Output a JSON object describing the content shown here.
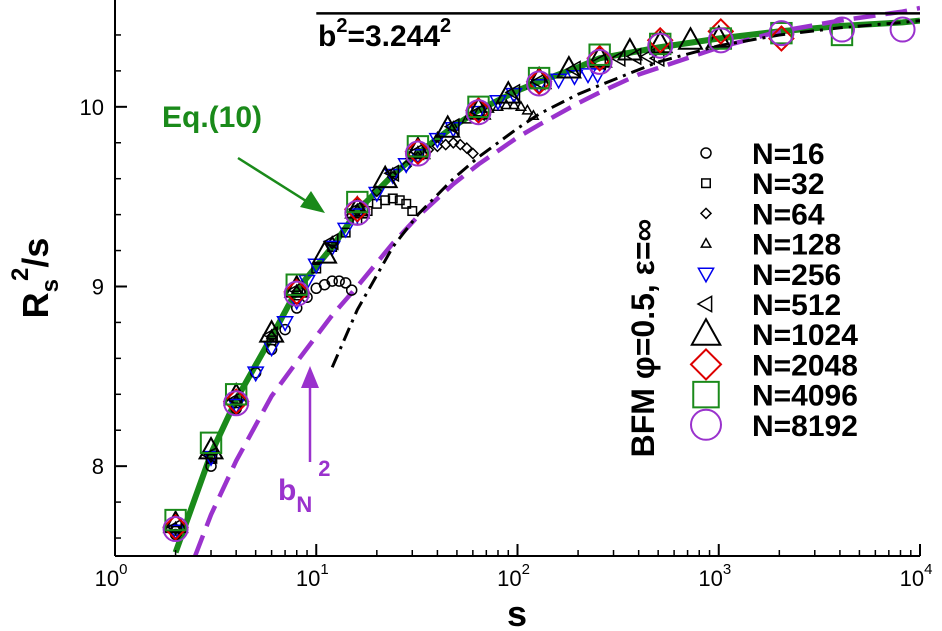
{
  "chart_data": {
    "type": "scatter",
    "title": "",
    "xlabel": "s",
    "ylabel_parts": {
      "base": "R",
      "sub": "s",
      "sup": "2",
      "rest": "/s"
    },
    "x_scale": "log",
    "xlim": [
      1,
      10000
    ],
    "ylim": [
      7.5,
      10.55
    ],
    "x_ticks": [
      {
        "value": 1,
        "base": "10",
        "exp": "0"
      },
      {
        "value": 10,
        "base": "10",
        "exp": "1"
      },
      {
        "value": 100,
        "base": "10",
        "exp": "2"
      },
      {
        "value": 1000,
        "base": "10",
        "exp": "3"
      },
      {
        "value": 10000,
        "base": "10",
        "exp": "4"
      }
    ],
    "y_ticks": [
      {
        "value": 8,
        "label": "8"
      },
      {
        "value": 9,
        "label": "9"
      },
      {
        "value": 10,
        "label": "10"
      }
    ],
    "legend_title": "BFM φ=0.5, ε=∞",
    "legend_position": "right",
    "annotations": {
      "plateau": {
        "base": "b",
        "sup1": "2",
        "mid": "=3.244",
        "sup2": "2",
        "value": 10.52
      },
      "eq10": {
        "text": "Eq.(10)",
        "color": "#1a8a1a"
      },
      "bN2": {
        "base": "b",
        "sub": "N",
        "sup": "2",
        "color": "#9a32cd"
      }
    },
    "curves": [
      {
        "id": "eq10",
        "style": "solid",
        "color": "#1a8a1a",
        "x": [
          2,
          3,
          4,
          6,
          8,
          12,
          16,
          24,
          32,
          48,
          64,
          100,
          128,
          200,
          256,
          500,
          1000,
          2000,
          4000,
          8192,
          10000
        ],
        "y": [
          7.52,
          8.07,
          8.37,
          8.72,
          8.98,
          9.22,
          9.42,
          9.62,
          9.74,
          9.89,
          9.98,
          10.09,
          10.14,
          10.22,
          10.27,
          10.33,
          10.38,
          10.42,
          10.45,
          10.47,
          10.48
        ]
      },
      {
        "id": "bN2",
        "style": "dashed",
        "color": "#9a32cd",
        "x": [
          2.5,
          3,
          4,
          6,
          8,
          12,
          16,
          24,
          32,
          48,
          64,
          100,
          128,
          200,
          256,
          400,
          512,
          1000,
          2000,
          4000,
          8192,
          10000
        ],
        "y": [
          7.5,
          7.73,
          8.03,
          8.39,
          8.58,
          8.84,
          9.0,
          9.24,
          9.39,
          9.57,
          9.68,
          9.83,
          9.9,
          10.02,
          10.08,
          10.18,
          10.22,
          10.33,
          10.42,
          10.48,
          10.53,
          10.55
        ]
      },
      {
        "id": "bfm-asymptote",
        "style": "dashdot",
        "color": "#000000",
        "x": [
          12,
          16,
          24,
          32,
          48,
          64,
          100,
          128,
          200,
          256,
          500,
          1000,
          2000,
          4000,
          8192,
          10000
        ],
        "y": [
          8.55,
          8.87,
          9.22,
          9.4,
          9.6,
          9.72,
          9.88,
          9.96,
          10.07,
          10.12,
          10.25,
          10.34,
          10.4,
          10.44,
          10.47,
          10.48
        ]
      },
      {
        "id": "plateau",
        "style": "solid",
        "color": "#000000",
        "x": [
          10,
          10000
        ],
        "y": [
          10.52,
          10.52
        ]
      }
    ],
    "series": [
      {
        "name": "N=16",
        "marker": "circle",
        "size": "small",
        "color": "#000000",
        "x": [
          2,
          3,
          4,
          5,
          6,
          7,
          8,
          9,
          10,
          11,
          12,
          13,
          14,
          15
        ],
        "y": [
          7.62,
          8.0,
          8.32,
          8.52,
          8.65,
          8.76,
          8.88,
          8.94,
          8.99,
          9.01,
          9.03,
          9.03,
          9.02,
          8.98
        ]
      },
      {
        "name": "N=32",
        "marker": "square",
        "size": "small",
        "color": "#000000",
        "x": [
          2,
          3,
          4,
          6,
          8,
          10,
          12,
          14,
          16,
          18,
          20,
          22,
          24,
          26,
          28,
          30
        ],
        "y": [
          7.64,
          8.04,
          8.35,
          8.7,
          8.95,
          9.1,
          9.22,
          9.3,
          9.37,
          9.42,
          9.46,
          9.48,
          9.49,
          9.48,
          9.46,
          9.42
        ]
      },
      {
        "name": "N=64",
        "marker": "diamond",
        "size": "small",
        "color": "#000000",
        "x": [
          2,
          3,
          4,
          6,
          8,
          12,
          16,
          20,
          24,
          28,
          32,
          36,
          40,
          44,
          48,
          52,
          56,
          60
        ],
        "y": [
          7.65,
          8.05,
          8.36,
          8.72,
          8.97,
          9.24,
          9.42,
          9.53,
          9.61,
          9.67,
          9.72,
          9.76,
          9.78,
          9.79,
          9.8,
          9.79,
          9.77,
          9.74
        ]
      },
      {
        "name": "N=128",
        "marker": "triangle-up",
        "size": "small",
        "color": "#000000",
        "x": [
          2,
          3,
          4,
          6,
          8,
          12,
          16,
          24,
          32,
          40,
          48,
          56,
          64,
          72,
          80,
          88,
          96,
          104,
          112,
          120
        ],
        "y": [
          7.66,
          8.06,
          8.37,
          8.73,
          8.98,
          9.25,
          9.43,
          9.63,
          9.75,
          9.83,
          9.89,
          9.93,
          9.97,
          9.99,
          10.0,
          10.01,
          10.01,
          10.0,
          9.98,
          9.95
        ]
      },
      {
        "name": "N=256",
        "marker": "triangle-down",
        "size": "medium",
        "color": "#0000ee",
        "x": [
          2,
          3,
          4,
          5,
          6,
          7,
          8,
          9,
          10,
          12,
          14,
          16,
          20,
          24,
          28,
          32,
          40,
          48,
          64,
          80,
          96,
          128,
          160,
          192,
          224,
          250
        ],
        "y": [
          7.64,
          8.05,
          8.34,
          8.52,
          8.66,
          8.8,
          8.92,
          9.03,
          9.12,
          9.22,
          9.32,
          9.4,
          9.52,
          9.62,
          9.68,
          9.73,
          9.82,
          9.88,
          9.97,
          10.03,
          10.07,
          10.12,
          10.15,
          10.17,
          10.18,
          10.18
        ]
      },
      {
        "name": "N=512",
        "marker": "triangle-left",
        "size": "medium",
        "color": "#000000",
        "x": [
          2,
          3,
          4,
          6,
          8,
          12,
          16,
          24,
          32,
          48,
          64,
          96,
          128,
          192,
          256,
          320,
          384,
          448,
          500
        ],
        "y": [
          7.66,
          8.06,
          8.37,
          8.73,
          8.98,
          9.25,
          9.43,
          9.63,
          9.75,
          9.89,
          9.97,
          10.08,
          10.14,
          10.21,
          10.25,
          10.27,
          10.28,
          10.28,
          10.27
        ]
      },
      {
        "name": "N=1024",
        "marker": "triangle-up",
        "size": "large",
        "color": "#000000",
        "x": [
          2,
          3,
          4,
          6,
          8,
          11,
          16,
          22,
          32,
          45,
          64,
          90,
          128,
          180,
          256,
          362,
          512,
          724,
          1000
        ],
        "y": [
          7.68,
          8.09,
          8.39,
          8.74,
          8.99,
          9.18,
          9.43,
          9.6,
          9.76,
          9.88,
          9.98,
          10.07,
          10.15,
          10.21,
          10.27,
          10.31,
          10.35,
          10.37,
          10.38
        ]
      },
      {
        "name": "N=2048",
        "marker": "diamond",
        "size": "large",
        "color": "#dd0000",
        "x": [
          2,
          4,
          8,
          16,
          32,
          64,
          128,
          256,
          512,
          1024,
          2048
        ],
        "y": [
          7.66,
          8.36,
          8.97,
          9.43,
          9.75,
          9.98,
          10.14,
          10.27,
          10.37,
          10.42,
          10.38
        ]
      },
      {
        "name": "N=4096",
        "marker": "square",
        "size": "large",
        "color": "#1a8a1a",
        "x": [
          2,
          3,
          4,
          8,
          16,
          32,
          64,
          128,
          256,
          512,
          1024,
          2048,
          4096
        ],
        "y": [
          7.7,
          8.13,
          8.4,
          9.01,
          9.47,
          9.78,
          10.0,
          10.16,
          10.29,
          10.35,
          10.38,
          10.41,
          10.4
        ]
      },
      {
        "name": "N=8192",
        "marker": "circle",
        "size": "large",
        "color": "#9a32cd",
        "x": [
          2,
          4,
          8,
          16,
          32,
          64,
          128,
          256,
          512,
          1024,
          2048,
          4096,
          8192
        ],
        "y": [
          7.65,
          8.35,
          8.96,
          9.41,
          9.74,
          9.97,
          10.13,
          10.25,
          10.34,
          10.37,
          10.41,
          10.43,
          10.43
        ]
      }
    ]
  }
}
